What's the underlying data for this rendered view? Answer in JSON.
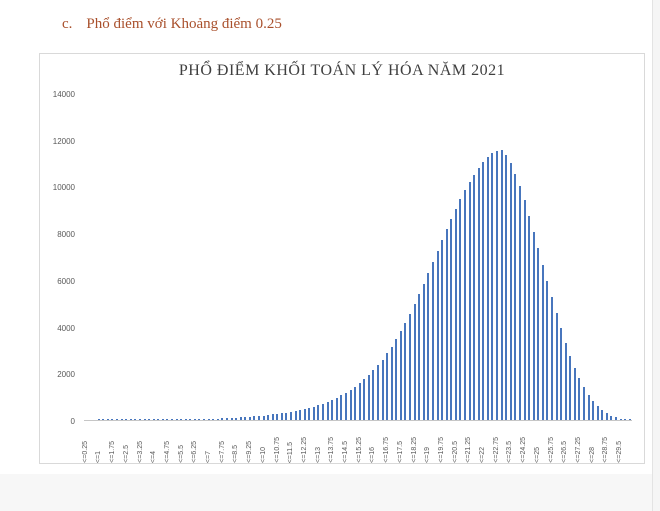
{
  "page": {
    "heading_marker": "c.",
    "heading_text": "Phổ điểm với Khoảng điểm 0.25",
    "heading_color": "#a9502c"
  },
  "chart_data": {
    "type": "bar",
    "title": "PHỔ ĐIỂM KHỐI TOÁN LÝ HÓA NĂM 2021",
    "xlabel": "",
    "ylabel": "",
    "legend": null,
    "grid": false,
    "bar_color": "#4876bd",
    "axis_text_color": "#595959",
    "ylim": [
      0,
      14000
    ],
    "y_ticks": [
      0,
      2000,
      4000,
      6000,
      8000,
      10000,
      12000,
      14000
    ],
    "bin_width": 0.25,
    "x_start": 0.25,
    "x_end": 30,
    "x_tick_labels": [
      "<=0.25",
      "<=1",
      "<=1.75",
      "<=2.5",
      "<=3.25",
      "<=4",
      "<=4.75",
      "<=5.5",
      "<=6.25",
      "<=7",
      "<=7.75",
      "<=8.5",
      "<=9.25",
      "<=10",
      "<=10.75",
      "<=11.5",
      "<=12.25",
      "<=13",
      "<=13.75",
      "<=14.5",
      "<=15.25",
      "<=16",
      "<=16.75",
      "<=17.5",
      "<=18.25",
      "<=19",
      "<=19.75",
      "<=20.5",
      "<=21.25",
      "<=22",
      "<=22.75",
      "<=23.5",
      "<=24.25",
      "<=25",
      "<=25.75",
      "<=26.5",
      "<=27.25",
      "<=28",
      "<=28.75",
      "<=29.5"
    ],
    "x_tick_every_n_bins": 3,
    "values": [
      0,
      0,
      0,
      1,
      1,
      1,
      1,
      2,
      2,
      3,
      3,
      4,
      5,
      6,
      7,
      8,
      10,
      12,
      14,
      16,
      19,
      22,
      25,
      29,
      33,
      38,
      43,
      49,
      56,
      63,
      71,
      80,
      90,
      101,
      113,
      126,
      140,
      156,
      173,
      192,
      213,
      236,
      261,
      288,
      318,
      351,
      387,
      427,
      471,
      519,
      572,
      630,
      694,
      764,
      841,
      926,
      1050,
      1160,
      1290,
      1430,
      1580,
      1750,
      1930,
      2130,
      2350,
      2590,
      2850,
      3140,
      3450,
      3790,
      4150,
      4540,
      4950,
      5380,
      5830,
      6290,
      6760,
      7230,
      7700,
      8160,
      8610,
      9040,
      9450,
      9830,
      10180,
      10500,
      10790,
      11040,
      11250,
      11410,
      11520,
      11570,
      11350,
      11000,
      10550,
      10000,
      9400,
      8750,
      8050,
      7350,
      6650,
      5950,
      5250,
      4570,
      3920,
      3310,
      2750,
      2240,
      1790,
      1400,
      1070,
      800,
      580,
      410,
      280,
      180,
      110,
      60,
      30,
      10
    ]
  }
}
